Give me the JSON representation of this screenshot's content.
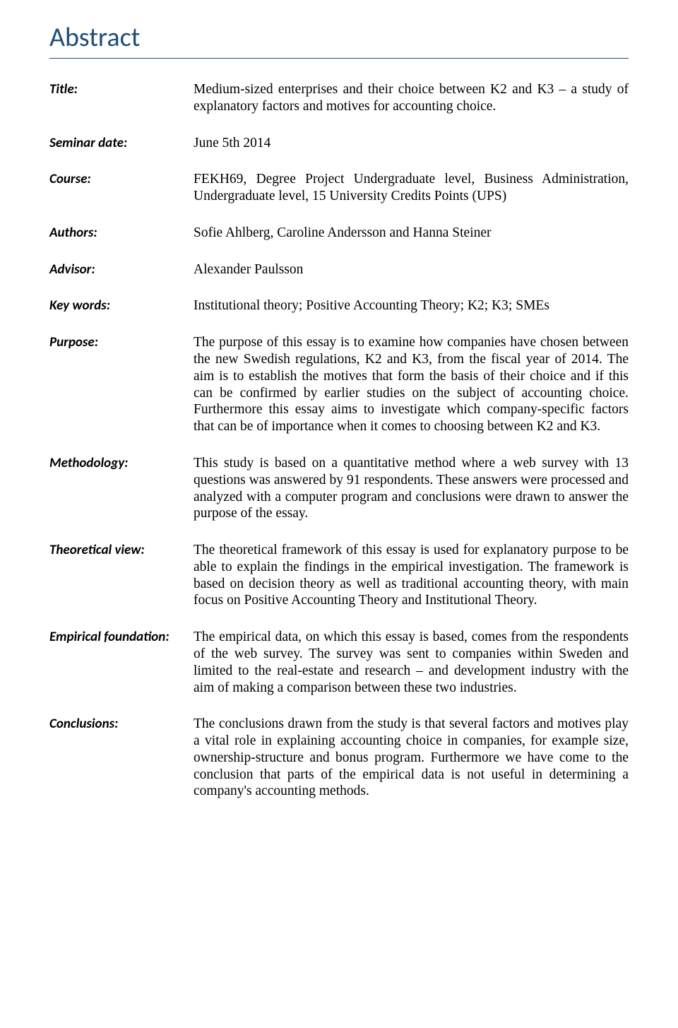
{
  "heading": "Abstract",
  "heading_color": "#1f4e79",
  "heading_fontsize": 38,
  "rule_color": "#1f4e79",
  "label_font": "Calibri",
  "label_fontsize": 19,
  "value_font": "Times New Roman",
  "value_fontsize": 19.5,
  "background_color": "#ffffff",
  "text_color": "#000000",
  "fields": {
    "title": {
      "label": "Title:",
      "value": "Medium-sized enterprises and their choice between K2 and K3 – a study of explanatory factors and motives for accounting choice."
    },
    "seminar_date": {
      "label": "Seminar date:",
      "value": "June 5th 2014"
    },
    "course": {
      "label": "Course:",
      "value": "FEKH69, Degree Project Undergraduate level, Business Administration, Undergraduate level, 15 University Credits Points (UPS)"
    },
    "authors": {
      "label": "Authors:",
      "value": "Sofie Ahlberg, Caroline Andersson and Hanna Steiner"
    },
    "advisor": {
      "label": "Advisor:",
      "value": "Alexander Paulsson"
    },
    "key_words": {
      "label": "Key words:",
      "value": "Institutional theory; Positive Accounting Theory; K2; K3; SMEs"
    },
    "purpose": {
      "label": "Purpose:",
      "value": "The purpose of this essay is to examine how companies have chosen between the new Swedish regulations, K2 and K3, from the fiscal year of 2014. The aim is to establish the motives that form the basis of their choice and if this can be confirmed by earlier studies on the subject of accounting choice. Furthermore this essay aims to investigate which company-specific factors that can be of importance when it comes to choosing between K2 and K3."
    },
    "methodology": {
      "label": "Methodology:",
      "value": "This study is based on a quantitative method where a web survey with 13 questions was answered by 91 respondents. These answers were processed and analyzed with a computer program and conclusions were drawn to answer the purpose of the essay."
    },
    "theoretical": {
      "label": "Theoretical view:",
      "value": "The theoretical framework of this essay is used for explanatory purpose to be able to explain the findings in the empirical investigation. The framework is based on decision theory as well as traditional accounting theory, with main focus on Positive Accounting Theory and Institutional Theory."
    },
    "empirical": {
      "label": "Empirical foundation:",
      "value": "The empirical data, on which this essay is based, comes from the respondents of the web survey. The survey was sent to companies within Sweden and limited to the real-estate and research – and development industry with the aim of making a comparison between these two industries."
    },
    "conclusions": {
      "label": "Conclusions:",
      "value": "The conclusions drawn from the study is that several factors and motives play a vital role in explaining accounting choice in companies, for example size, ownership-structure and bonus program. Furthermore we have come to the conclusion that parts of the empirical data is not useful in determining a company's accounting methods."
    }
  }
}
